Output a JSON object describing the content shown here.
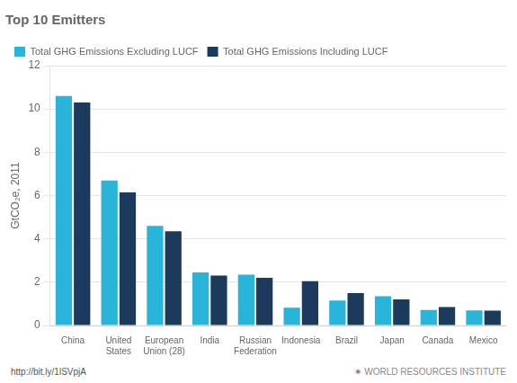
{
  "chart_data": {
    "type": "bar",
    "title": "Top 10 Emitters",
    "categories": [
      "China",
      "United\nStates",
      "European\nUnion (28)",
      "India",
      "Russian\nFederation",
      "Indonesia",
      "Brazil",
      "Japan",
      "Canada",
      "Mexico"
    ],
    "series": [
      {
        "name": "Total GHG Emissions Excluding LUCF",
        "color": "#29b5d9",
        "values": [
          10.6,
          6.7,
          4.6,
          2.45,
          2.35,
          0.82,
          1.15,
          1.35,
          0.72,
          0.7
        ]
      },
      {
        "name": "Total GHG Emissions Including LUCF",
        "color": "#1b3a5c",
        "values": [
          10.3,
          6.15,
          4.35,
          2.3,
          2.2,
          2.05,
          1.5,
          1.2,
          0.85,
          0.68
        ]
      }
    ],
    "ylabel": "GtCO₂e, 2011",
    "ylim": [
      0,
      12
    ],
    "yticks": [
      0,
      2,
      4,
      6,
      8,
      10,
      12
    ],
    "grid": true,
    "legend": "top",
    "annotations": [
      "http://bit.ly/1lSVpjA",
      "✷  WORLD RESOURCES INSTITUTE"
    ]
  }
}
